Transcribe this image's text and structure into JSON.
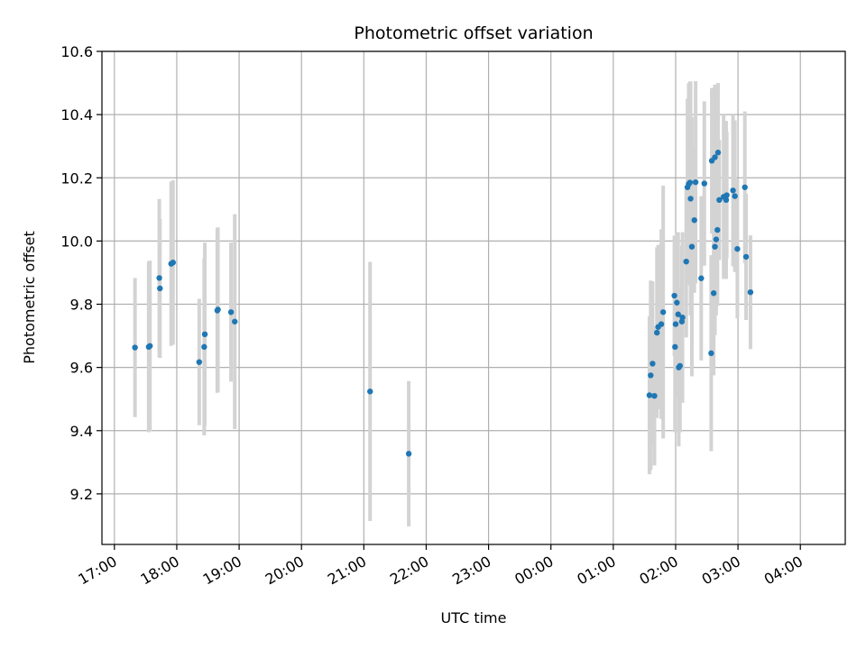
{
  "chart_data": {
    "type": "scatter",
    "title": "Photometric offset variation",
    "xlabel": "UTC time",
    "ylabel": "Photometric offset",
    "x_tick_labels": [
      "17:00",
      "18:00",
      "19:00",
      "20:00",
      "21:00",
      "22:00",
      "23:00",
      "00:00",
      "01:00",
      "02:00",
      "03:00",
      "04:00"
    ],
    "x_ticks_hours": [
      0,
      1,
      2,
      3,
      4,
      5,
      6,
      7,
      8,
      9,
      10,
      11
    ],
    "xlim_hours": [
      -0.2,
      11.72
    ],
    "y_tick_labels": [
      "9.2",
      "9.4",
      "9.6",
      "9.8",
      "10.0",
      "10.2",
      "10.4",
      "10.6"
    ],
    "y_ticks": [
      9.2,
      9.4,
      9.6,
      9.8,
      10.0,
      10.2,
      10.4,
      10.6
    ],
    "ylim": [
      9.04,
      10.6
    ],
    "grid": true,
    "colors": {
      "points": "#1f77b4",
      "errorbars": "#d3d3d3"
    },
    "series": [
      {
        "x_hours": [
          0.33,
          0.55,
          0.57,
          0.72,
          0.73,
          0.91,
          0.94,
          1.36,
          1.44,
          1.45,
          1.65,
          1.66,
          1.87,
          1.93,
          4.1,
          4.72,
          8.58,
          8.6,
          8.63,
          8.66,
          8.7,
          8.72,
          8.77,
          8.8,
          8.98,
          8.99,
          9.0,
          9.02,
          9.04,
          9.05,
          9.07,
          9.1,
          9.11,
          9.17,
          9.19,
          9.21,
          9.23,
          9.24,
          9.26,
          9.3,
          9.32,
          9.41,
          9.46,
          9.58,
          9.63,
          9.68,
          9.57,
          9.61,
          9.63,
          9.65,
          9.67,
          9.7,
          9.77,
          9.81,
          9.82,
          9.92,
          9.95,
          9.99,
          10.11,
          10.13,
          10.2
        ],
        "y": [
          9.663,
          9.665,
          9.668,
          9.883,
          9.85,
          9.928,
          9.932,
          9.617,
          9.665,
          9.705,
          9.78,
          9.783,
          9.775,
          9.745,
          9.524,
          9.327,
          9.512,
          9.575,
          9.612,
          9.51,
          9.71,
          9.728,
          9.737,
          9.775,
          9.827,
          9.665,
          9.737,
          9.805,
          9.768,
          9.6,
          9.605,
          9.745,
          9.758,
          9.935,
          10.17,
          10.18,
          10.185,
          10.134,
          9.982,
          10.066,
          10.186,
          9.882,
          10.182,
          10.254,
          10.265,
          10.28,
          9.645,
          9.835,
          9.982,
          10.005,
          10.035,
          10.13,
          10.14,
          10.13,
          10.145,
          10.16,
          10.142,
          9.975,
          10.17,
          9.95,
          9.838
        ],
        "err": [
          0.22,
          0.27,
          0.27,
          0.25,
          0.22,
          0.26,
          0.26,
          0.2,
          0.28,
          0.29,
          0.26,
          0.26,
          0.22,
          0.34,
          0.41,
          0.23,
          0.25,
          0.3,
          0.26,
          0.22,
          0.27,
          0.26,
          0.3,
          0.4,
          0.19,
          0.27,
          0.2,
          0.22,
          0.26,
          0.25,
          0.21,
          0.24,
          0.27,
          0.24,
          0.28,
          0.32,
          0.32,
          0.37,
          0.41,
          0.23,
          0.32,
          0.26,
          0.26,
          0.23,
          0.23,
          0.22,
          0.31,
          0.26,
          0.28,
          0.24,
          0.24,
          0.19,
          0.26,
          0.25,
          0.2,
          0.24,
          0.24,
          0.22,
          0.24,
          0.2,
          0.18
        ]
      }
    ]
  }
}
